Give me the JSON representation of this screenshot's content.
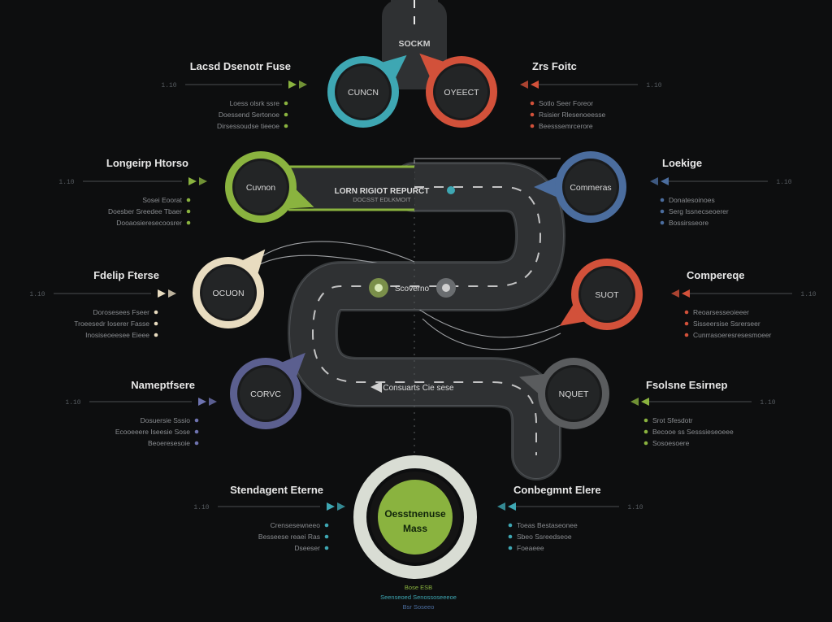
{
  "colors": {
    "background": "#0d0e0f",
    "road": "#2f3133",
    "teal": "#3ea7b3",
    "red": "#d2513a",
    "green": "#8ab33f",
    "blue": "#4b6d9e",
    "cream": "#e8dcc0",
    "indigo": "#5b5f8f",
    "gray": "#5a5c5e"
  },
  "start": {
    "label": "SOCKM"
  },
  "road_labels": {
    "top": "LORN RIGIOT REPURCT",
    "top_sub": "DOCSST   EDLKMOIT",
    "middle": "Scoverno",
    "lower": "Consuarts Cie sese"
  },
  "nodes": [
    {
      "name": "node-cuncn",
      "label": "CUNCN",
      "color": "#3ea7b3"
    },
    {
      "name": "node-oyeect",
      "label": "OYEECT",
      "color": "#d2513a"
    },
    {
      "name": "node-cuvnon",
      "label": "Cuvnon",
      "color": "#8ab33f"
    },
    {
      "name": "node-commeras",
      "label": "Commeras",
      "color": "#4b6d9e"
    },
    {
      "name": "node-ocuon",
      "label": "OCUON",
      "color": "#e8dcc0"
    },
    {
      "name": "node-suot",
      "label": "SUOT",
      "color": "#d2513a"
    },
    {
      "name": "node-corvc",
      "label": "CORVC",
      "color": "#5b5f8f"
    },
    {
      "name": "node-nquet",
      "label": "NQUET",
      "color": "#5a5c5e"
    }
  ],
  "goal": {
    "line1": "Oesstnenuse",
    "line2": "Mass"
  },
  "callouts": [
    {
      "name": "callout-lacsd",
      "title": "Lacsd Dsenotr Fuse",
      "color": "#8ab33f",
      "tick": "1.10",
      "lines": [
        "Loess olsrk ssre",
        "Doessend Sertonoe",
        "Dirsessoudse tieeoe"
      ]
    },
    {
      "name": "callout-zrs",
      "title": "Zrs Foitc",
      "color": "#d2513a",
      "tick": "1.10",
      "lines": [
        "Sotlo Seer Foreor",
        "Rsisier Rlesenoeesse",
        "Beesssemrcerore"
      ]
    },
    {
      "name": "callout-longeirp",
      "title": "Longeirp Htorso",
      "color": "#8ab33f",
      "tick": "1.10",
      "lines": [
        "Sosei Eoorat",
        "Doesber Sreedee Tbaer",
        "Dooaosieresecoosrer"
      ]
    },
    {
      "name": "callout-loekige",
      "title": "Loekige",
      "color": "#4b6d9e",
      "tick": "1.10",
      "lines": [
        "Donatesoinoes",
        "Serg Issnecseoerer",
        "Bossirsseore"
      ]
    },
    {
      "name": "callout-fdelip",
      "title": "Fdelip Fterse",
      "color": "#e8dcc0",
      "tick": "1.10",
      "lines": [
        "Dorosesees Fseer",
        "Troeesedr Ioserer Fasse",
        "Inosiseoeesee Eieee"
      ]
    },
    {
      "name": "callout-compereqe",
      "title": "Compereqe",
      "color": "#d2513a",
      "tick": "1.10",
      "lines": [
        "Reoarsesseoieeer",
        "Sisseersise Ssrerseer",
        "Cunrrasoeresresesmoeer"
      ]
    },
    {
      "name": "callout-nameptfsere",
      "title": "Nameptfsere",
      "color": "#6e73b0",
      "tick": "1.10",
      "lines": [
        "Dosuersie Sssio",
        "Ecooeeere Iseesie Sose",
        "Beoeresesoie"
      ]
    },
    {
      "name": "callout-fsolsne",
      "title": "Fsolsne Esirnep",
      "color": "#8ab33f",
      "tick": "1.10",
      "lines": [
        "Srot Sfesdotr",
        "Becooe ss Sesssieseoeee",
        "Sosoesoere"
      ]
    },
    {
      "name": "callout-stendagent",
      "title": "Stendagent Eterne",
      "color": "#3ea7b3",
      "tick": "1.10",
      "lines": [
        "Crensesewneeo",
        "Besseese reaei Ras",
        "Dseeser"
      ]
    },
    {
      "name": "callout-conbegmnt",
      "title": "Conbegmnt Elere",
      "color": "#3ea7b3",
      "tick": "1.10",
      "lines": [
        "Toeas Bestaseonee",
        "Sbeo Ssreedseoe",
        "Foeaeee"
      ]
    }
  ],
  "footer": {
    "line1": "Bose  ESB",
    "line2": "Seenseoed Senossoseeeoe",
    "line3": "Bsr Soseeo"
  }
}
